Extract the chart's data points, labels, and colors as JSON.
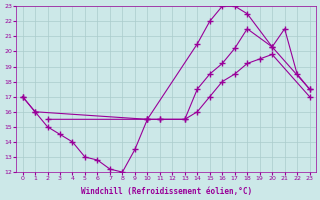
{
  "xlabel": "Windchill (Refroidissement éolien,°C)",
  "bg_color": "#cce8e8",
  "line_color": "#990099",
  "grid_color": "#aacccc",
  "xlim": [
    -0.5,
    23.5
  ],
  "ylim": [
    12,
    23
  ],
  "xticks": [
    0,
    1,
    2,
    3,
    4,
    5,
    6,
    7,
    8,
    9,
    10,
    11,
    12,
    13,
    14,
    15,
    16,
    17,
    18,
    19,
    20,
    21,
    22,
    23
  ],
  "yticks": [
    12,
    13,
    14,
    15,
    16,
    17,
    18,
    19,
    20,
    21,
    22,
    23
  ],
  "line1_x": [
    0,
    1,
    2,
    3,
    4,
    5,
    6,
    7,
    8,
    9,
    10,
    14,
    15,
    16,
    17,
    18,
    20,
    23
  ],
  "line1_y": [
    17,
    16,
    15,
    14.5,
    14,
    13,
    12.8,
    12.2,
    12,
    13.5,
    15.5,
    20.5,
    22.0,
    23.0,
    23.0,
    22.5,
    20.3,
    17.5
  ],
  "line2_x": [
    0,
    1,
    10,
    11,
    13,
    14,
    15,
    16,
    17,
    18,
    20,
    21,
    22,
    23
  ],
  "line2_y": [
    17,
    16,
    15.5,
    15.5,
    15.5,
    17.5,
    18.5,
    19.2,
    20.2,
    21.5,
    20.3,
    21.5,
    18.5,
    17.5
  ],
  "line3_x": [
    2,
    10,
    11,
    13,
    14,
    15,
    16,
    17,
    18,
    19,
    20,
    23
  ],
  "line3_y": [
    15.5,
    15.5,
    15.5,
    15.5,
    16.0,
    17.0,
    18.0,
    18.5,
    19.2,
    19.5,
    19.8,
    17.0
  ]
}
